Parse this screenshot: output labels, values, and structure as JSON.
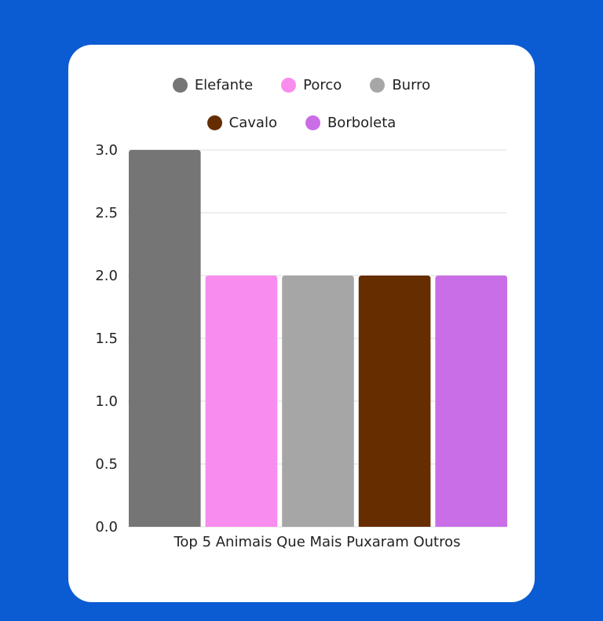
{
  "chart_data": {
    "type": "bar",
    "categories": [
      "Top 5 Animais Que Mais Puxaram Outros"
    ],
    "series": [
      {
        "name": "Elefante",
        "values": [
          3
        ],
        "color": "#757575"
      },
      {
        "name": "Porco",
        "values": [
          2
        ],
        "color": "#f98cef"
      },
      {
        "name": "Burro",
        "values": [
          2
        ],
        "color": "#a6a6a6"
      },
      {
        "name": "Cavalo",
        "values": [
          2
        ],
        "color": "#652d00"
      },
      {
        "name": "Borboleta",
        "values": [
          2
        ],
        "color": "#c96ee6"
      }
    ],
    "ylim": [
      0,
      3
    ],
    "yticks": [
      "0.0",
      "0.5",
      "1.0",
      "1.5",
      "2.0",
      "2.5",
      "3.0"
    ],
    "grid": true,
    "legend": "top"
  },
  "colors": {
    "background": "#0b5bd3",
    "card": "#ffffff"
  }
}
